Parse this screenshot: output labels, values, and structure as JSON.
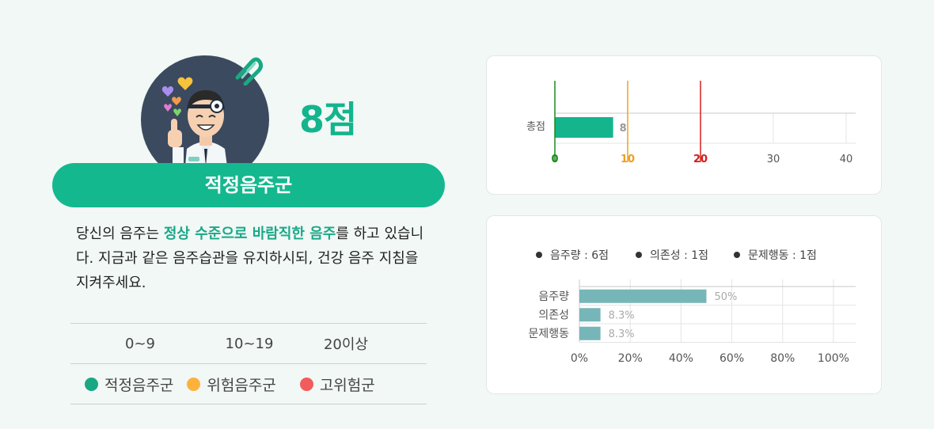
{
  "result": {
    "score_text": "8점",
    "group_label": "적정음주군",
    "description_parts": {
      "before": "당신의 음주는 ",
      "highlight": "정상 수준으로 바람직한 음주",
      "after": "를 하고 있습니다. 지금과 같은 음주습관을 유지하시되, 건강 음주 지침을 지켜주세요."
    }
  },
  "legend": {
    "ranges": [
      "0~9",
      "10~19",
      "20이상"
    ],
    "groups": [
      {
        "label": "적정음주군",
        "color": "#1aa884"
      },
      {
        "label": "위험음주군",
        "color": "#fdb23c"
      },
      {
        "label": "고위험군",
        "color": "#f25c5c"
      }
    ]
  },
  "icons": {
    "avatar": "doctor-thumbs-up-illustration",
    "clip": "paperclip-icon"
  },
  "chart_data": [
    {
      "type": "bar",
      "orientation": "horizontal",
      "categories": [
        "총점"
      ],
      "values": [
        8
      ],
      "data_labels": [
        "8"
      ],
      "xlim": [
        0,
        40
      ],
      "x_ticks": [
        "0",
        "10",
        "20",
        "30",
        "40"
      ],
      "thresholds": [
        {
          "value": 0,
          "label": "0",
          "color": "#1e8a1e"
        },
        {
          "value": 10,
          "label": "10",
          "color": "#f0a020"
        },
        {
          "value": 20,
          "label": "20",
          "color": "#d81e1e"
        }
      ],
      "bar_color": "#14b48d",
      "grid": true
    },
    {
      "type": "bar",
      "orientation": "horizontal",
      "legend": [
        "음주량 : 6점",
        "의존성 : 1점",
        "문제행동 : 1점"
      ],
      "legend_position": "top",
      "categories": [
        "음주량",
        "의존성",
        "문제행동"
      ],
      "values": [
        50,
        8.3,
        8.3
      ],
      "data_labels": [
        "50%",
        "8.3%",
        "8.3%"
      ],
      "xlim": [
        0,
        105
      ],
      "x_ticks": [
        "0%",
        "20%",
        "40%",
        "60%",
        "80%",
        "100%"
      ],
      "bar_color": "#76b6b8",
      "grid": true
    }
  ]
}
